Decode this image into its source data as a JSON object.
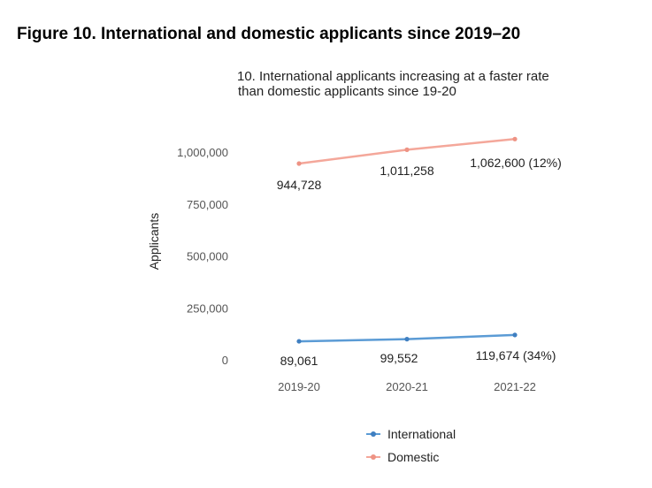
{
  "figure_title": "Figure 10. International and domestic applicants since 2019–20",
  "chart_data": {
    "type": "line",
    "title_line1": "10. International applicants increasing at a faster rate",
    "title_line2": "than domestic applicants since 19-20",
    "ylabel": "Applicants",
    "xlabel": "",
    "categories": [
      "2019-20",
      "2020-21",
      "2021-22"
    ],
    "yticks": [
      {
        "value": 0,
        "label": "0"
      },
      {
        "value": 250000,
        "label": "250,000"
      },
      {
        "value": 500000,
        "label": "500,000"
      },
      {
        "value": 750000,
        "label": "750,000"
      },
      {
        "value": 1000000,
        "label": "1,000,000"
      }
    ],
    "ylim": [
      0,
      1100000
    ],
    "grid": false,
    "legend_position": "bottom",
    "series": [
      {
        "name": "International",
        "color": "#5b9bd5",
        "values": [
          89061,
          99552,
          119674
        ],
        "labels": [
          "89,061",
          "99,552",
          "119,674 (34%)"
        ]
      },
      {
        "name": "Domestic",
        "color": "#f4a79a",
        "values": [
          944728,
          1011258,
          1062600
        ],
        "labels": [
          "944,728",
          "1,011,258",
          "1,062,600 (12%)"
        ]
      }
    ]
  }
}
